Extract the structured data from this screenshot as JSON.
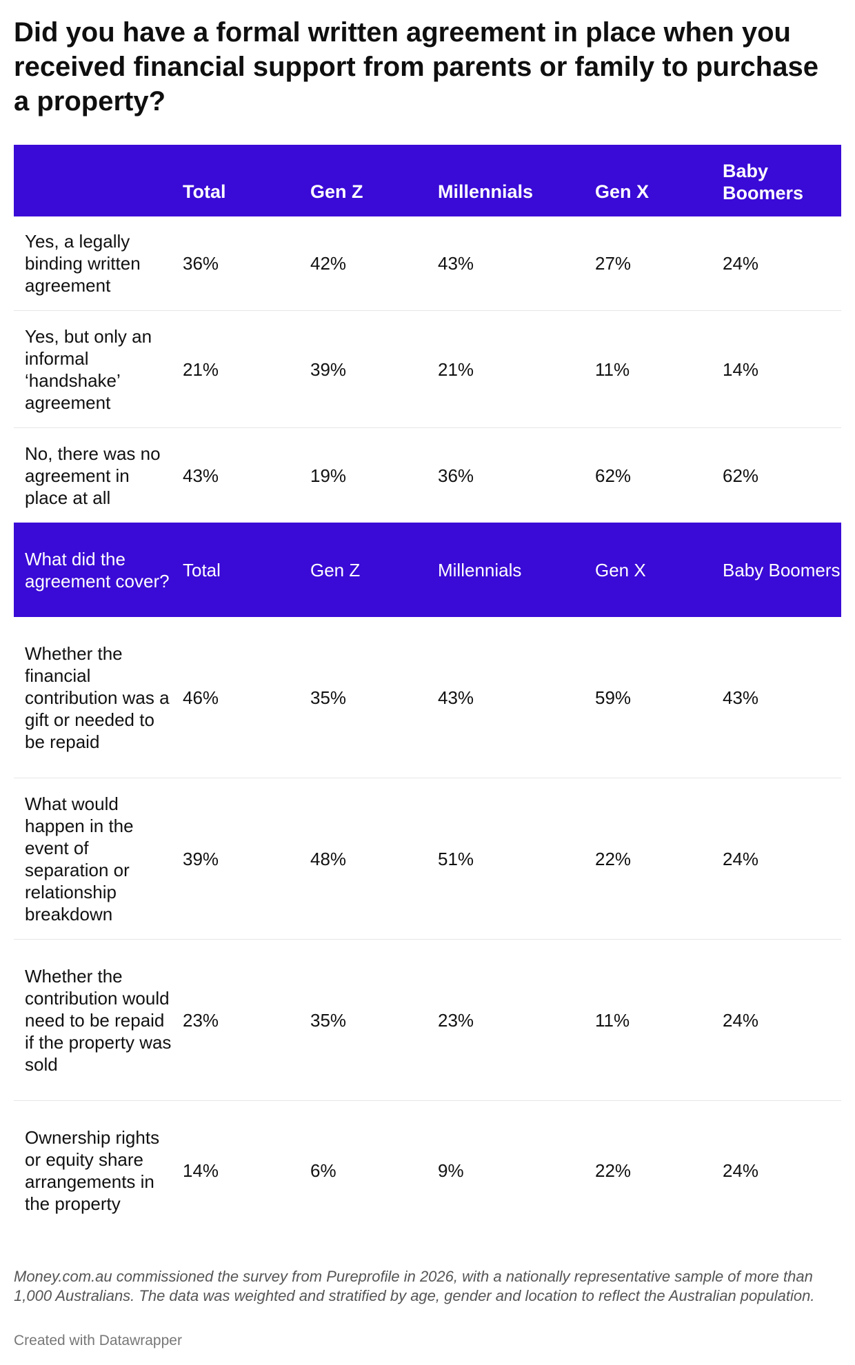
{
  "title": "Did you have a formal written agreement in place when you received financial support from parents or family to purchase a property?",
  "chart_data": {
    "type": "table",
    "sections": [
      {
        "header": [
          "",
          "Total",
          "Gen Z",
          "Millennials",
          "Gen X",
          "Baby Boomers"
        ],
        "rows": [
          {
            "label": "Yes, a legally binding written agreement",
            "values": [
              "36%",
              "42%",
              "43%",
              "27%",
              "24%"
            ]
          },
          {
            "label": "Yes, but only an informal ‘handshake’ agreement",
            "values": [
              "21%",
              "39%",
              "21%",
              "11%",
              "14%"
            ]
          },
          {
            "label": "No, there was no agreement in place at all",
            "values": [
              "43%",
              "19%",
              "36%",
              "62%",
              "62%"
            ]
          }
        ]
      },
      {
        "header": [
          "What did the agreement cover?",
          "Total",
          "Gen Z",
          "Millennials",
          "Gen X",
          "Baby Boomers"
        ],
        "rows": [
          {
            "label": "Whether the financial contribution was a gift or needed to be repaid",
            "values": [
              "46%",
              "35%",
              "43%",
              "59%",
              "43%"
            ]
          },
          {
            "label": "What would happen in the event of separation or relationship breakdown",
            "values": [
              "39%",
              "48%",
              "51%",
              "22%",
              "24%"
            ]
          },
          {
            "label": "Whether the contribution would need to be repaid if the property was sold",
            "values": [
              "23%",
              "35%",
              "23%",
              "11%",
              "24%"
            ]
          },
          {
            "label": "Ownership rights or equity share arrangements in the property",
            "values": [
              "14%",
              "6%",
              "9%",
              "22%",
              "24%"
            ]
          }
        ]
      }
    ]
  },
  "colors": {
    "header_background": "#3a0ad6",
    "header_text": "#ffffff"
  },
  "footnote": "Money.com.au commissioned the survey from Pureprofile in 2026, with a nationally representative sample of more than 1,000 Australians. The data was weighted and stratified by age, gender and location to reflect the Australian population.",
  "credit": "Created with Datawrapper"
}
